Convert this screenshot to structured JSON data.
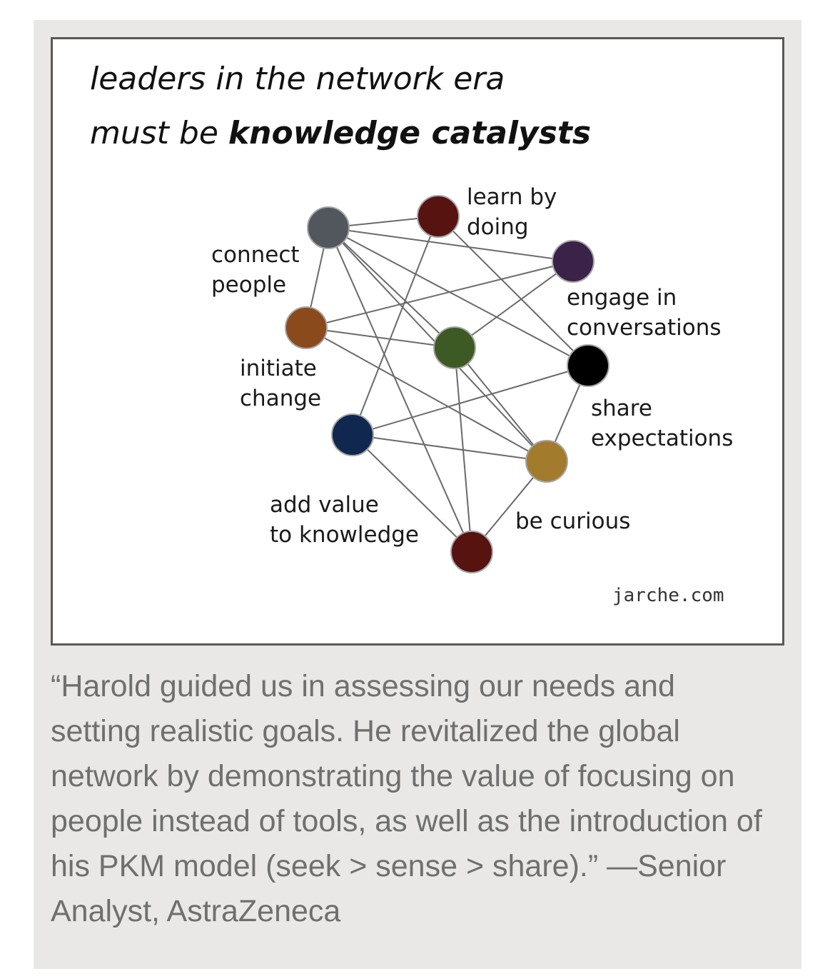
{
  "figure": {
    "title_line1": "leaders in the network era",
    "title_line2_prefix": "must be ",
    "title_line2_bold": "knowledge catalysts",
    "credit": "jarche.com",
    "node_colors": {
      "connect_people": "#52575d",
      "learn_by_doing": "#561310",
      "engage_in_conversations": "#3a2248",
      "initiate_change": "#8a4a1c",
      "center": "#3e5a24",
      "share_expectations": "#000000",
      "add_value": "#10284f",
      "be_curious": "#a37b2c",
      "bottom": "#561310"
    },
    "labels": {
      "learn_by_doing": "learn by\ndoing",
      "connect_people": "connect\npeople",
      "engage_in_conversations": "engage in\nconversations",
      "initiate_change": "initiate\nchange",
      "share_expectations": "share\nexpectations",
      "add_value": "add value\nto knowledge",
      "be_curious": "be curious"
    }
  },
  "testimonial": {
    "text": "“Harold guided us in assessing our needs and setting realistic goals. He revitalized the global network by demonstrating the value of focusing on people instead of tools, as well as the introduction of his PKM model (seek > sense > share).” —Senior Analyst, AstraZeneca"
  }
}
